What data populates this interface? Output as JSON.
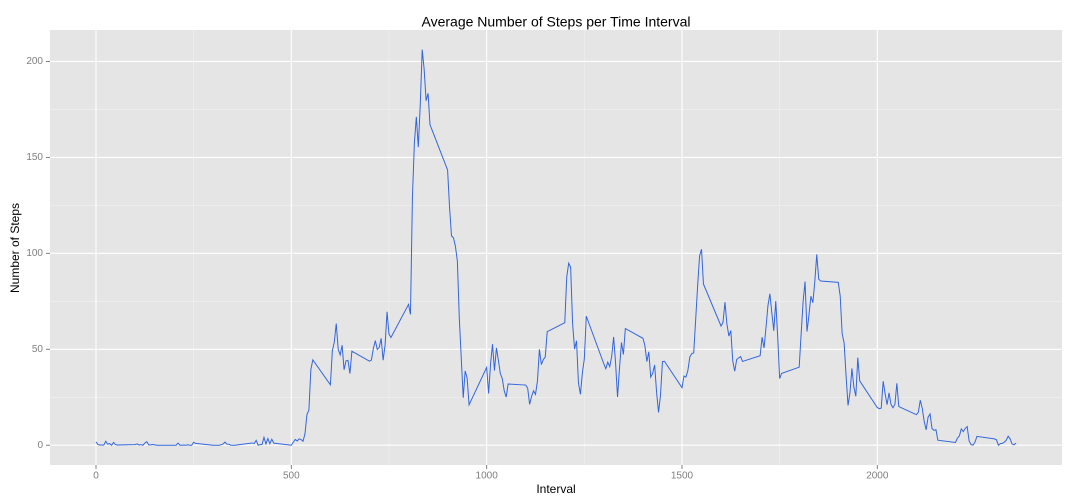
{
  "chart_data": {
    "type": "line",
    "title": "Average Number of Steps per Time Interval",
    "x_label": "Interval",
    "y_label": "Number of Steps",
    "xlim": [
      -117.75,
      2472.75
    ],
    "ylim": [
      -10.3,
      216.4
    ],
    "xticks": [
      0,
      500,
      1000,
      1500,
      2000
    ],
    "yticks": [
      0,
      50,
      100,
      150,
      200
    ],
    "grid": true,
    "x": [
      0,
      5,
      10,
      15,
      20,
      25,
      30,
      35,
      40,
      45,
      50,
      55,
      100,
      105,
      110,
      115,
      120,
      125,
      130,
      135,
      140,
      145,
      150,
      155,
      200,
      205,
      210,
      215,
      220,
      225,
      230,
      235,
      240,
      245,
      250,
      255,
      300,
      305,
      310,
      315,
      320,
      325,
      330,
      335,
      340,
      345,
      350,
      355,
      400,
      405,
      410,
      415,
      420,
      425,
      430,
      435,
      440,
      445,
      450,
      455,
      500,
      505,
      510,
      515,
      520,
      525,
      530,
      535,
      540,
      545,
      550,
      555,
      600,
      605,
      610,
      615,
      620,
      625,
      630,
      635,
      640,
      645,
      650,
      655,
      700,
      705,
      710,
      715,
      720,
      725,
      730,
      735,
      740,
      745,
      750,
      755,
      800,
      805,
      810,
      815,
      820,
      825,
      830,
      835,
      840,
      845,
      850,
      855,
      900,
      905,
      910,
      915,
      920,
      925,
      930,
      935,
      940,
      945,
      950,
      955,
      1000,
      1005,
      1010,
      1015,
      1020,
      1025,
      1030,
      1035,
      1040,
      1045,
      1050,
      1055,
      1100,
      1105,
      1110,
      1115,
      1120,
      1125,
      1130,
      1135,
      1140,
      1145,
      1150,
      1155,
      1200,
      1205,
      1210,
      1215,
      1220,
      1225,
      1230,
      1235,
      1240,
      1245,
      1250,
      1255,
      1300,
      1305,
      1310,
      1315,
      1320,
      1325,
      1330,
      1335,
      1340,
      1345,
      1350,
      1355,
      1400,
      1405,
      1410,
      1415,
      1420,
      1425,
      1430,
      1435,
      1440,
      1445,
      1450,
      1455,
      1500,
      1505,
      1510,
      1515,
      1520,
      1525,
      1530,
      1535,
      1540,
      1545,
      1550,
      1555,
      1600,
      1605,
      1610,
      1615,
      1620,
      1625,
      1630,
      1635,
      1640,
      1645,
      1650,
      1655,
      1700,
      1705,
      1710,
      1715,
      1720,
      1725,
      1730,
      1735,
      1740,
      1745,
      1750,
      1755,
      1800,
      1805,
      1810,
      1815,
      1820,
      1825,
      1830,
      1835,
      1840,
      1845,
      1850,
      1855,
      1900,
      1905,
      1910,
      1915,
      1920,
      1925,
      1930,
      1935,
      1940,
      1945,
      1950,
      1955,
      2000,
      2005,
      2010,
      2015,
      2020,
      2025,
      2030,
      2035,
      2040,
      2045,
      2050,
      2055,
      2100,
      2105,
      2110,
      2115,
      2120,
      2125,
      2130,
      2135,
      2140,
      2145,
      2150,
      2155,
      2200,
      2205,
      2210,
      2215,
      2220,
      2225,
      2230,
      2235,
      2240,
      2245,
      2250,
      2255,
      2300,
      2305,
      2310,
      2315,
      2320,
      2325,
      2330,
      2335,
      2340,
      2345,
      2350,
      2355
    ],
    "color": "#3366dd",
    "values": [
      1.72,
      0.34,
      0.13,
      0.15,
      0.08,
      2.09,
      0.53,
      0.87,
      0,
      1.47,
      0.3,
      0.13,
      0.32,
      0.68,
      0.15,
      0.34,
      0,
      1.11,
      1.83,
      0.17,
      0.17,
      0.38,
      0.26,
      0,
      0,
      0,
      1.13,
      0,
      0,
      0.13,
      0,
      0.23,
      0,
      0,
      1.55,
      0.94,
      0,
      0,
      0,
      0,
      0.21,
      0.62,
      1.62,
      0.58,
      0.49,
      0.08,
      0,
      0,
      1.19,
      0.94,
      2.57,
      0,
      0.34,
      0.36,
      4.11,
      0.66,
      3.49,
      0.83,
      3.11,
      1.11,
      0,
      1.57,
      3,
      2.25,
      3.32,
      2.96,
      2.09,
      6.06,
      16.02,
      18.34,
      39.45,
      44.49,
      31.49,
      49.26,
      53.77,
      63.45,
      49.96,
      47.08,
      52.15,
      39.34,
      44.02,
      44.17,
      37.36,
      49.04,
      43.81,
      44.38,
      50.51,
      54.51,
      49.92,
      50.98,
      55.68,
      44.32,
      52.26,
      69.55,
      57.85,
      56.15,
      73.38,
      68.21,
      129.43,
      157.53,
      171.15,
      155.4,
      177.3,
      206.17,
      195.92,
      179.57,
      183.4,
      167.02,
      143.45,
      124.04,
      109.11,
      108.11,
      103.72,
      95.96,
      66.21,
      45.23,
      24.79,
      38.75,
      34.98,
      21.06,
      40.57,
      26.98,
      42.42,
      52.66,
      38.92,
      50.79,
      44.28,
      37.42,
      34.7,
      28.34,
      25.09,
      31.94,
      31.36,
      29.68,
      21.32,
      25.55,
      28.38,
      26.47,
      33.43,
      49.98,
      42.04,
      44.6,
      46.04,
      59.19,
      63.87,
      87.7,
      94.85,
      92.77,
      63.4,
      50.17,
      54.47,
      32.42,
      26.53,
      37.74,
      45.06,
      67.28,
      42.34,
      39.89,
      43.26,
      40.98,
      46.25,
      56.43,
      42.75,
      25.13,
      39.96,
      53.55,
      47.32,
      60.81,
      55.75,
      51.96,
      43.58,
      48.7,
      35.47,
      37.55,
      41.85,
      27.51,
      17.11,
      26.08,
      43.62,
      43.77,
      30.02,
      36.08,
      35.49,
      38.85,
      45.96,
      47.75,
      48.13,
      65.32,
      82.91,
      98.66,
      102.11,
      83.96,
      62.13,
      64.13,
      74.55,
      63.17,
      56.91,
      59.77,
      43.87,
      38.57,
      44.66,
      45.45,
      46.21,
      43.68,
      46.62,
      56.3,
      50.72,
      61.23,
      72.72,
      78.94,
      68.94,
      59.66,
      75.09,
      56.51,
      34.77,
      37.45,
      40.68,
      58.02,
      74.7,
      85.32,
      59.26,
      67.77,
      77.7,
      74.25,
      85.34,
      99.45,
      86.58,
      85.6,
      84.87,
      77.83,
      58.04,
      53.36,
      36.32,
      20.72,
      27.4,
      40.02,
      30.21,
      25.55,
      45.66,
      33.53,
      19.62,
      19.02,
      19.34,
      33.34,
      26.81,
      21.17,
      27.3,
      21.34,
      19.55,
      21.32,
      32.3,
      20.15,
      15.94,
      17.23,
      23.45,
      19.25,
      12.45,
      8.02,
      14.66,
      16.3,
      8.68,
      7.79,
      8.13,
      2.62,
      1.45,
      3.68,
      4.81,
      8.51,
      7.08,
      8.7,
      9.75,
      2.21,
      0.32,
      0.11,
      1.6,
      4.6,
      3.3,
      2.85,
      0,
      0.83,
      0.96,
      1.58,
      2.6,
      4.7,
      3.3,
      0.64,
      0.23,
      1.08
    ]
  }
}
